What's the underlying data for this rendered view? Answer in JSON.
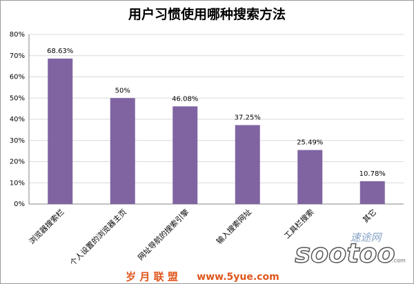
{
  "chart_data": {
    "type": "bar",
    "title": "用户习惯使用哪种搜索方法",
    "categories": [
      "浏览器搜索栏",
      "个人设置的浏览器主页",
      "网址导航的搜索引擎",
      "输入搜索网址",
      "工具栏搜索",
      "其它"
    ],
    "values": [
      68.63,
      50,
      46.08,
      37.25,
      25.49,
      10.78
    ],
    "value_labels": [
      "68.63%",
      "50%",
      "46.08%",
      "37.25%",
      "25.49%",
      "10.78%"
    ],
    "color": "#8064a2",
    "ylim": [
      0,
      80
    ],
    "yticks": [
      {
        "value": 0,
        "label": "0%"
      },
      {
        "value": 10,
        "label": "10%"
      },
      {
        "value": 20,
        "label": "20%"
      },
      {
        "value": 30,
        "label": "30%"
      },
      {
        "value": 40,
        "label": "40%"
      },
      {
        "value": 50,
        "label": "50%"
      },
      {
        "value": 60,
        "label": "60%"
      },
      {
        "value": 70,
        "label": "70%"
      },
      {
        "value": 80,
        "label": "80%"
      }
    ],
    "grid": true
  },
  "watermarks": [
    "速途网",
    "sootoo",
    ".com",
    "岁 月 联 盟",
    "www.5yue.com"
  ]
}
